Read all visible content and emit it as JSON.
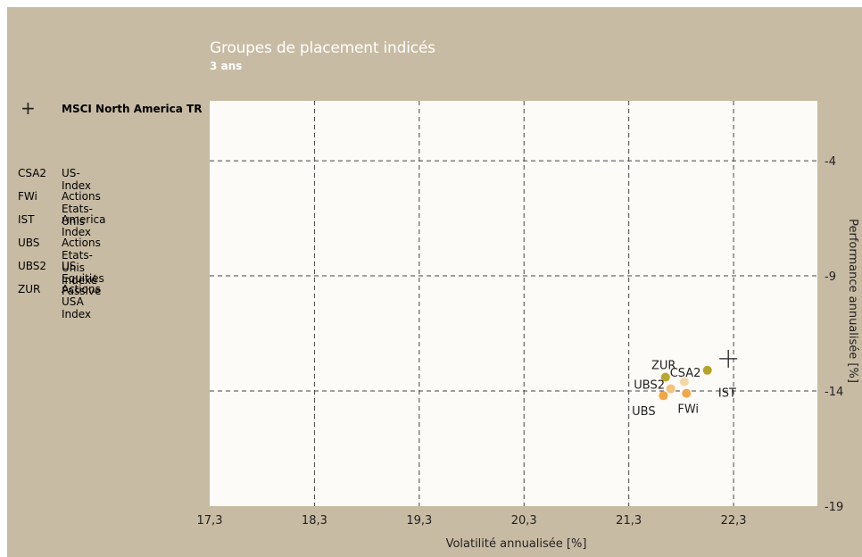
{
  "chart_data": {
    "type": "scatter",
    "title": "Groupes de placement indicés",
    "subtitle": "3 ans",
    "xlabel": "Volatilité annualisée [%]",
    "ylabel": "Performance annualisée [%]",
    "xlim": [
      17.3,
      23.1
    ],
    "ylim": [
      -19,
      -1.4
    ],
    "x_ticks": [
      "17,3",
      "18,3",
      "19,3",
      "20,3",
      "21,3",
      "22,3"
    ],
    "x_tick_values": [
      17.3,
      18.3,
      19.3,
      20.3,
      21.3,
      22.3
    ],
    "y_ticks": [
      "-4",
      "-9",
      "-14",
      "-19"
    ],
    "y_tick_values": [
      -4,
      -9,
      -14,
      -19
    ],
    "grid": true,
    "benchmark": {
      "symbol": "+",
      "name": "MSCI North America TR",
      "x": 22.25,
      "y": -12.6
    },
    "legend": [
      {
        "code": "CSA2",
        "name": "US-Index"
      },
      {
        "code": "FWi",
        "name": "Actions Etats-Unis"
      },
      {
        "code": "IST",
        "name": "America Index"
      },
      {
        "code": "UBS",
        "name": "Actions Etats-Unis Indexé"
      },
      {
        "code": "UBS2",
        "name": "US Equities Passive"
      },
      {
        "code": "ZUR",
        "name": "Actions USA Index"
      }
    ],
    "points": [
      {
        "code": "CSA2",
        "x": 22.05,
        "y": -13.1,
        "color": "#b5a32a"
      },
      {
        "code": "ZUR",
        "x": 21.65,
        "y": -13.4,
        "color": "#b8a82e"
      },
      {
        "code": "FWi",
        "x": 21.85,
        "y": -14.1,
        "color": "#f0a84a"
      },
      {
        "code": "IST",
        "x": 21.83,
        "y": -13.6,
        "color": "#f3d9a6"
      },
      {
        "code": "UBS",
        "x": 21.63,
        "y": -14.2,
        "color": "#f3a443"
      },
      {
        "code": "UBS2",
        "x": 21.7,
        "y": -13.9,
        "color": "#f5c27c"
      }
    ]
  },
  "colors": {
    "background": "#c8bba3",
    "plot_area": "#fdfbf7",
    "grid": "#444444"
  }
}
